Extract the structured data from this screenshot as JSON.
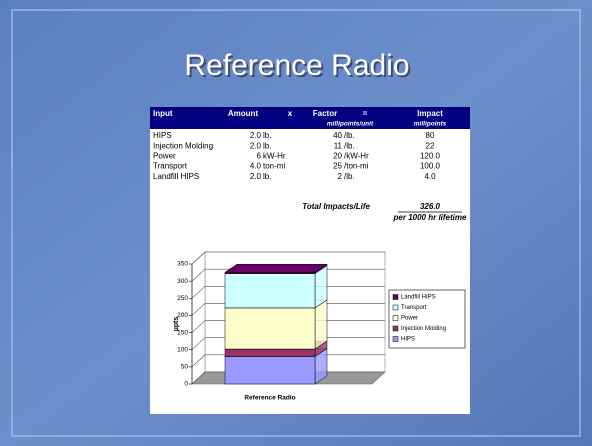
{
  "title": "Reference Radio",
  "table": {
    "header": [
      "Input",
      "Amount",
      "x",
      "Factor",
      "=",
      "Impact"
    ],
    "subheader": [
      "millipoints/unit",
      "millipoints"
    ],
    "rows": [
      [
        "HIPS",
        "2.0",
        "lb.",
        "40",
        "/lb.",
        "80"
      ],
      [
        "Injection Molding",
        "2.0",
        "lb.",
        "11",
        "/lb.",
        "22"
      ],
      [
        "Power",
        "6",
        "kW-Hr",
        "20",
        "/kW-Hr",
        "120.0"
      ],
      [
        "Transport",
        "4.0",
        "ton-mi",
        "25",
        "/ton-mi",
        "100.0"
      ],
      [
        " Landfill HIPS",
        "2.0",
        "lb.",
        "2",
        "/lb.",
        "4.0"
      ]
    ],
    "total_label": "Total Impacts/Life",
    "total": "326.0",
    "total_note": "per 1000 hr lifetime"
  },
  "chart_data": {
    "type": "stacked_bar_3d",
    "categories": [
      "Reference Radio"
    ],
    "y_label": "µpts",
    "series": [
      {
        "name": "HIPS",
        "color": "#9999ff",
        "values": [
          80
        ]
      },
      {
        "name": "Injection Molding",
        "color": "#993366",
        "values": [
          22
        ]
      },
      {
        "name": "Power",
        "color": "#ffffcc",
        "values": [
          120
        ]
      },
      {
        "name": "Transport",
        "color": "#ccffff",
        "values": [
          100
        ]
      },
      {
        "name": "Landfill HIPS",
        "color": "#660066",
        "values": [
          4
        ]
      }
    ],
    "ylim": [
      0,
      350
    ],
    "yticks": [
      0,
      50,
      100,
      150,
      200,
      250,
      300,
      350
    ],
    "grid": true,
    "legend": "right"
  }
}
